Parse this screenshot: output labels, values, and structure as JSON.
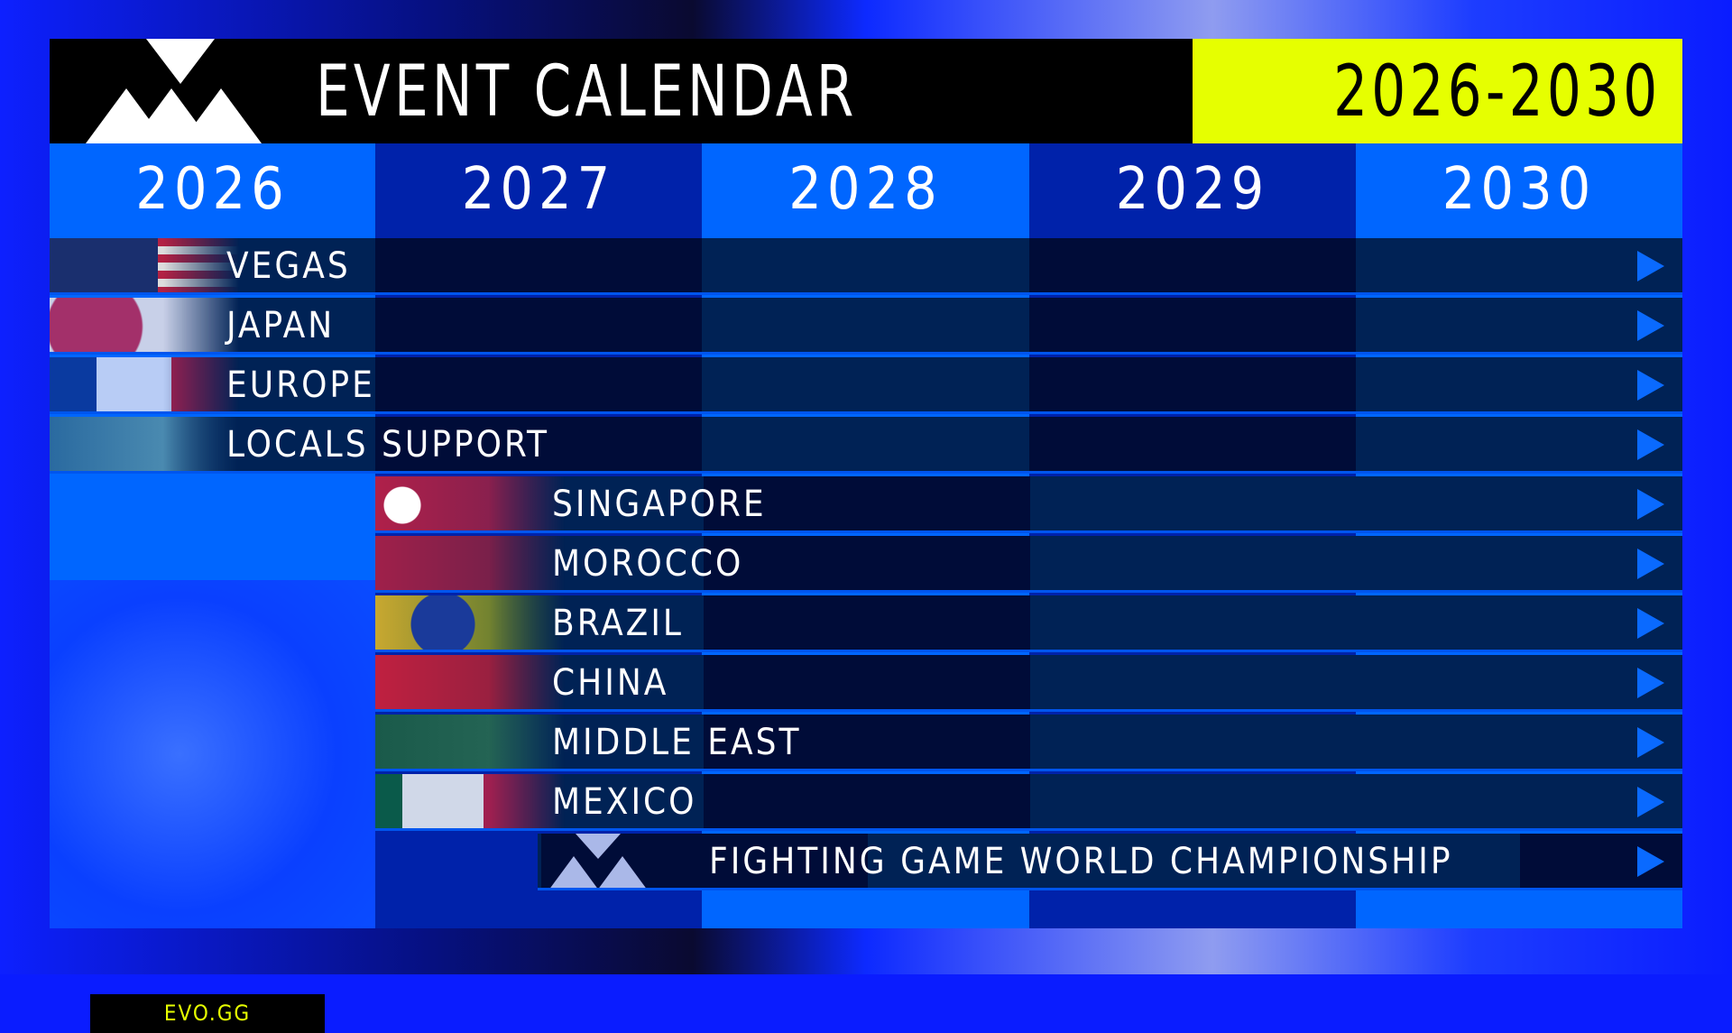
{
  "header": {
    "title": "EVENT CALENDAR",
    "range": "2026-2030"
  },
  "years": [
    "2026",
    "2027",
    "2028",
    "2029",
    "2030"
  ],
  "events": [
    {
      "label": "VEGAS",
      "flag": "usa-flag",
      "start_year": "2026"
    },
    {
      "label": "JAPAN",
      "flag": "japan-flag",
      "start_year": "2026"
    },
    {
      "label": "EUROPE",
      "flag": "france-flag",
      "start_year": "2026"
    },
    {
      "label": "LOCALS SUPPORT",
      "flag": "world-map",
      "start_year": "2026"
    },
    {
      "label": "SINGAPORE",
      "flag": "singapore-flag",
      "start_year": "2027"
    },
    {
      "label": "MOROCCO",
      "flag": "morocco-flag",
      "start_year": "2027"
    },
    {
      "label": "BRAZIL",
      "flag": "brazil-flag",
      "start_year": "2027"
    },
    {
      "label": "CHINA",
      "flag": "china-flag",
      "start_year": "2027"
    },
    {
      "label": "MIDDLE EAST",
      "flag": "saudi-flag",
      "start_year": "2027"
    },
    {
      "label": "MEXICO",
      "flag": "mexico-flag",
      "start_year": "2027"
    },
    {
      "label": "FIGHTING GAME WORLD CHAMPIONSHIP",
      "flag": "evo-logo",
      "start_year": "2027"
    }
  ],
  "footer": {
    "site": "EVO.GG"
  },
  "colors": {
    "accent": "#e6ff00",
    "blue": "#0066ff",
    "dark_blue": "#0022aa",
    "arrow": "#0a6aff"
  }
}
